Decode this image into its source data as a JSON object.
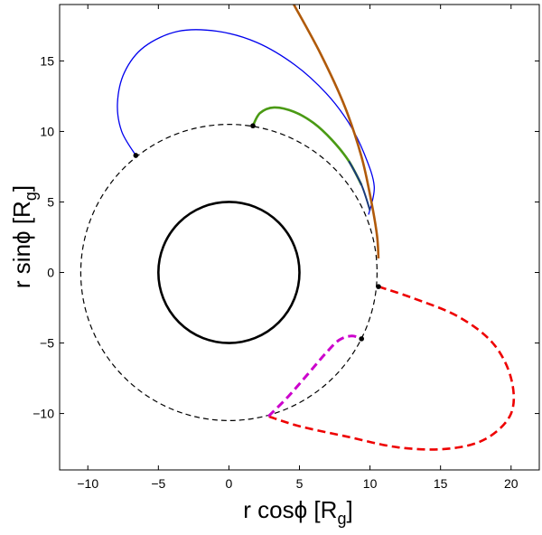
{
  "chart_data": {
    "type": "line",
    "title": "",
    "xlabel": "r cosϕ [R",
    "xlabel_sub": "g",
    "xlabel_close": "]",
    "ylabel": "r sinϕ [R",
    "ylabel_sub": "g",
    "ylabel_close": "]",
    "xlim": [
      -12,
      22
    ],
    "ylim": [
      -14,
      19
    ],
    "grid": false,
    "xticks": [
      -10,
      -5,
      0,
      5,
      10,
      15,
      20
    ],
    "yticks": [
      -10,
      -5,
      0,
      5,
      10,
      15
    ],
    "xtick_labels": [
      "−10",
      "−5",
      "0",
      "5",
      "10",
      "15",
      "20"
    ],
    "ytick_labels": [
      "−10",
      "−5",
      "0",
      "5",
      "10",
      "15"
    ],
    "circles": [
      {
        "name": "",
        "cx": 0,
        "cy": 0,
        "r": 5,
        "color": "#000000",
        "style": "solid"
      },
      {
        "name": "",
        "cx": 0,
        "cy": 0,
        "r": 10.5,
        "color": "#000000",
        "style": "dashed"
      }
    ],
    "series": [
      {
        "color": "#0000ee",
        "style": "solid",
        "width": 1.3,
        "points": [
          [
            -6.6,
            8.3
          ],
          [
            -7.6,
            10.0
          ],
          [
            -7.9,
            12.0
          ],
          [
            -7.4,
            14.2
          ],
          [
            -6.0,
            16.0
          ],
          [
            -3.6,
            17.1
          ],
          [
            -0.8,
            17.1
          ],
          [
            2.0,
            16.3
          ],
          [
            4.7,
            14.7
          ],
          [
            6.9,
            12.7
          ],
          [
            8.5,
            10.6
          ],
          [
            9.6,
            8.4
          ],
          [
            10.3,
            6.1
          ],
          [
            9.9,
            4.1
          ]
        ]
      },
      {
        "color": "#4a9a14",
        "style": "solid",
        "width": 2.6,
        "points": [
          [
            1.7,
            10.4
          ],
          [
            2.2,
            11.3
          ],
          [
            3.2,
            11.7
          ],
          [
            4.6,
            11.4
          ],
          [
            6.0,
            10.6
          ],
          [
            7.3,
            9.4
          ],
          [
            8.5,
            7.9
          ],
          [
            9.4,
            6.2
          ]
        ]
      },
      {
        "color": "#1a3a7a",
        "style": "solid",
        "width": 2.0,
        "points": [
          [
            8.5,
            7.9
          ],
          [
            9.4,
            6.2
          ],
          [
            10.0,
            4.4
          ]
        ]
      },
      {
        "color": "#b05a0a",
        "style": "solid",
        "width": 2.6,
        "points": [
          [
            4.6,
            19.0
          ],
          [
            6.5,
            15.5
          ],
          [
            8.2,
            11.8
          ],
          [
            9.4,
            8.2
          ],
          [
            10.1,
            5.0
          ],
          [
            10.5,
            2.6
          ],
          [
            10.6,
            1.0
          ]
        ]
      },
      {
        "color": "#ee0000",
        "style": "dashed",
        "width": 2.6,
        "points": [
          [
            10.6,
            -1.0
          ],
          [
            13.0,
            -1.8
          ],
          [
            16.2,
            -3.1
          ],
          [
            18.7,
            -5.0
          ],
          [
            20.0,
            -7.5
          ],
          [
            20.0,
            -10.0
          ],
          [
            18.2,
            -11.8
          ],
          [
            15.5,
            -12.5
          ],
          [
            12.0,
            -12.4
          ],
          [
            8.2,
            -11.6
          ],
          [
            5.0,
            -10.9
          ],
          [
            2.8,
            -10.2
          ]
        ]
      },
      {
        "color": "#cc00cc",
        "style": "dashed",
        "width": 3.0,
        "points": [
          [
            2.8,
            -10.2
          ],
          [
            4.2,
            -8.8
          ],
          [
            5.6,
            -7.2
          ],
          [
            6.8,
            -5.8
          ],
          [
            7.8,
            -4.8
          ],
          [
            8.7,
            -4.5
          ],
          [
            9.4,
            -4.7
          ]
        ]
      }
    ],
    "markers": [
      {
        "x": -6.6,
        "y": 8.3
      },
      {
        "x": 1.7,
        "y": 10.4
      },
      {
        "x": 10.6,
        "y": -1.0
      },
      {
        "x": 9.4,
        "y": -4.7
      }
    ]
  }
}
